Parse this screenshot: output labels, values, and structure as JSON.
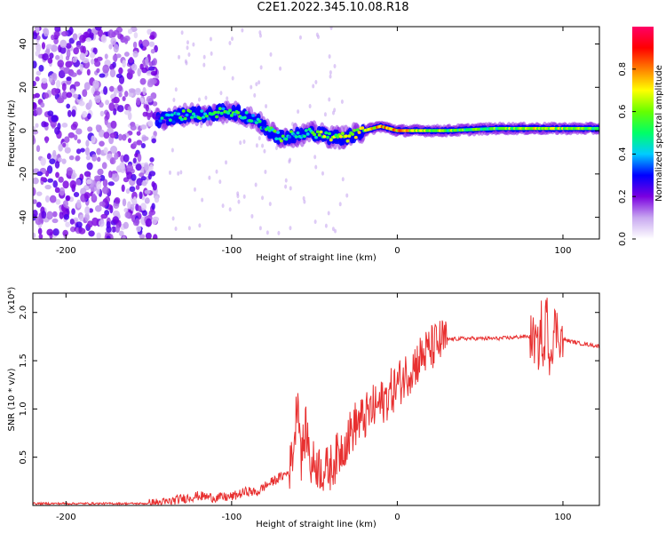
{
  "title": "C2E1.2022.345.10.08.R18",
  "chart_data": [
    {
      "type": "heatmap",
      "xlabel": "Height of straight line (km)",
      "ylabel": "Frequency (Hz)",
      "xlim": [
        -220,
        122
      ],
      "ylim": [
        -50,
        48
      ],
      "x_ticks": [
        {
          "value": -200,
          "label": "-200"
        },
        {
          "value": -100,
          "label": "-100"
        },
        {
          "value": 0,
          "label": "0"
        },
        {
          "value": 100,
          "label": "100"
        }
      ],
      "y_ticks": [
        {
          "value": -40,
          "label": "-40"
        },
        {
          "value": -20,
          "label": "-20"
        },
        {
          "value": 0,
          "label": "0"
        },
        {
          "value": 20,
          "label": "20"
        },
        {
          "value": 40,
          "label": "40"
        }
      ],
      "colorbar": {
        "label": "Normalized spectral amplitude",
        "range": [
          0,
          1
        ],
        "ticks": [
          {
            "value": 0.0,
            "label": "0.0"
          },
          {
            "value": 0.2,
            "label": "0.2"
          },
          {
            "value": 0.4,
            "label": "0.4"
          },
          {
            "value": 0.6,
            "label": "0.6"
          },
          {
            "value": 0.8,
            "label": "0.8"
          }
        ],
        "colors": [
          "#ffffff",
          "#c8a8f0",
          "#7a00e0",
          "#0000ff",
          "#00ccff",
          "#00ff66",
          "#66ff00",
          "#ffff00",
          "#ff8000",
          "#ff0000",
          "#ff0066"
        ]
      },
      "noise_region_x": [
        -220,
        -145
      ],
      "trace": [
        {
          "x": -145,
          "y": 5,
          "amp": 0.35
        },
        {
          "x": -135,
          "y": 6,
          "amp": 0.45
        },
        {
          "x": -125,
          "y": 8,
          "amp": 0.5
        },
        {
          "x": -115,
          "y": 7,
          "amp": 0.45
        },
        {
          "x": -105,
          "y": 9,
          "amp": 0.5
        },
        {
          "x": -95,
          "y": 8,
          "amp": 0.45
        },
        {
          "x": -85,
          "y": 5,
          "amp": 0.4
        },
        {
          "x": -78,
          "y": 0,
          "amp": 0.45
        },
        {
          "x": -70,
          "y": -3,
          "amp": 0.5
        },
        {
          "x": -60,
          "y": -2,
          "amp": 0.45
        },
        {
          "x": -50,
          "y": -1,
          "amp": 0.55
        },
        {
          "x": -40,
          "y": -3,
          "amp": 0.6
        },
        {
          "x": -30,
          "y": -3,
          "amp": 0.6
        },
        {
          "x": -20,
          "y": 0,
          "amp": 0.65
        },
        {
          "x": -10,
          "y": 2,
          "amp": 0.75
        },
        {
          "x": 0,
          "y": 0,
          "amp": 0.75
        },
        {
          "x": 10,
          "y": 0,
          "amp": 0.7
        },
        {
          "x": 30,
          "y": 0,
          "amp": 0.55
        },
        {
          "x": 60,
          "y": 1,
          "amp": 0.55
        },
        {
          "x": 85,
          "y": 1,
          "amp": 0.65
        },
        {
          "x": 100,
          "y": 1,
          "amp": 0.6
        },
        {
          "x": 122,
          "y": 1,
          "amp": 0.55
        }
      ]
    },
    {
      "type": "line",
      "xlabel": "Height of straight line (km)",
      "ylabel": "SNR (10 * v/v)",
      "y_multiplier": "(x10⁴)",
      "xlim": [
        -220,
        122
      ],
      "ylim": [
        0,
        2.2
      ],
      "x_ticks": [
        {
          "value": -200,
          "label": "-200"
        },
        {
          "value": -100,
          "label": "-100"
        },
        {
          "value": 0,
          "label": "0"
        },
        {
          "value": 100,
          "label": "100"
        }
      ],
      "y_ticks": [
        {
          "value": 0.5,
          "label": "0.5"
        },
        {
          "value": 1.0,
          "label": "1.0"
        },
        {
          "value": 1.5,
          "label": "1.5"
        },
        {
          "value": 2.0,
          "label": "2.0"
        }
      ],
      "color": "#e83030",
      "series": [
        {
          "x": [
            -220,
            -150,
            -140,
            -130,
            -120,
            -110,
            -100,
            -95,
            -90,
            -85,
            -80,
            -75,
            -70,
            -65,
            -62,
            -60,
            -58,
            -55,
            -52,
            -50,
            -47,
            -44,
            -40,
            -35,
            -30,
            -25,
            -20,
            -15,
            -10,
            -5,
            0,
            5,
            10,
            15,
            20,
            25,
            30,
            40,
            50,
            60,
            70,
            75,
            80,
            83,
            85,
            87,
            88,
            90,
            92,
            95,
            100,
            110,
            122
          ],
          "y": [
            0.02,
            0.02,
            0.03,
            0.07,
            0.1,
            0.08,
            0.09,
            0.12,
            0.15,
            0.13,
            0.2,
            0.25,
            0.3,
            0.35,
            0.7,
            1.2,
            0.5,
            0.8,
            0.4,
            0.45,
            0.4,
            0.35,
            0.4,
            0.55,
            0.7,
            0.85,
            0.9,
            1.0,
            1.05,
            1.15,
            1.25,
            1.35,
            1.45,
            1.55,
            1.62,
            1.68,
            1.72,
            1.73,
            1.73,
            1.73,
            1.74,
            1.75,
            1.75,
            1.7,
            1.6,
            1.9,
            1.4,
            2.05,
            1.55,
            1.85,
            1.72,
            1.68,
            1.65
          ]
        }
      ]
    }
  ]
}
